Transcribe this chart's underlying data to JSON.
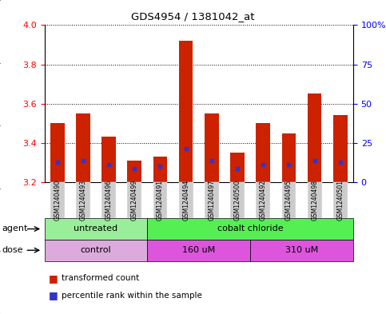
{
  "title": "GDS4954 / 1381042_at",
  "samples": [
    "GSM1240490",
    "GSM1240493",
    "GSM1240496",
    "GSM1240499",
    "GSM1240491",
    "GSM1240494",
    "GSM1240497",
    "GSM1240500",
    "GSM1240492",
    "GSM1240495",
    "GSM1240498",
    "GSM1240501"
  ],
  "bar_bottom": 3.2,
  "bar_tops": [
    3.5,
    3.55,
    3.43,
    3.31,
    3.33,
    3.92,
    3.55,
    3.35,
    3.5,
    3.45,
    3.65,
    3.54
  ],
  "percentile_values": [
    3.3,
    3.31,
    3.29,
    3.27,
    3.28,
    3.37,
    3.31,
    3.27,
    3.29,
    3.29,
    3.31,
    3.3
  ],
  "ylim_left": [
    3.2,
    4.0
  ],
  "yticks_left": [
    3.2,
    3.4,
    3.6,
    3.8,
    4.0
  ],
  "yticks_right": [
    0,
    25,
    50,
    75,
    100
  ],
  "ytick_labels_right": [
    "0",
    "25",
    "50",
    "75",
    "100%"
  ],
  "bar_color": "#cc2200",
  "percentile_color": "#3333cc",
  "agent_groups": [
    {
      "label": "untreated",
      "start": 0,
      "end": 4,
      "color": "#99ee99"
    },
    {
      "label": "cobalt chloride",
      "start": 4,
      "end": 12,
      "color": "#55ee55"
    }
  ],
  "dose_groups": [
    {
      "label": "control",
      "start": 0,
      "end": 4,
      "color": "#ddaadd"
    },
    {
      "label": "160 uM",
      "start": 4,
      "end": 8,
      "color": "#dd55dd"
    },
    {
      "label": "310 uM",
      "start": 8,
      "end": 12,
      "color": "#dd55dd"
    }
  ],
  "legend_red_label": "transformed count",
  "legend_blue_label": "percentile rank within the sample",
  "agent_label": "agent",
  "dose_label": "dose",
  "bar_width": 0.55,
  "xlim": [
    -0.5,
    11.5
  ]
}
